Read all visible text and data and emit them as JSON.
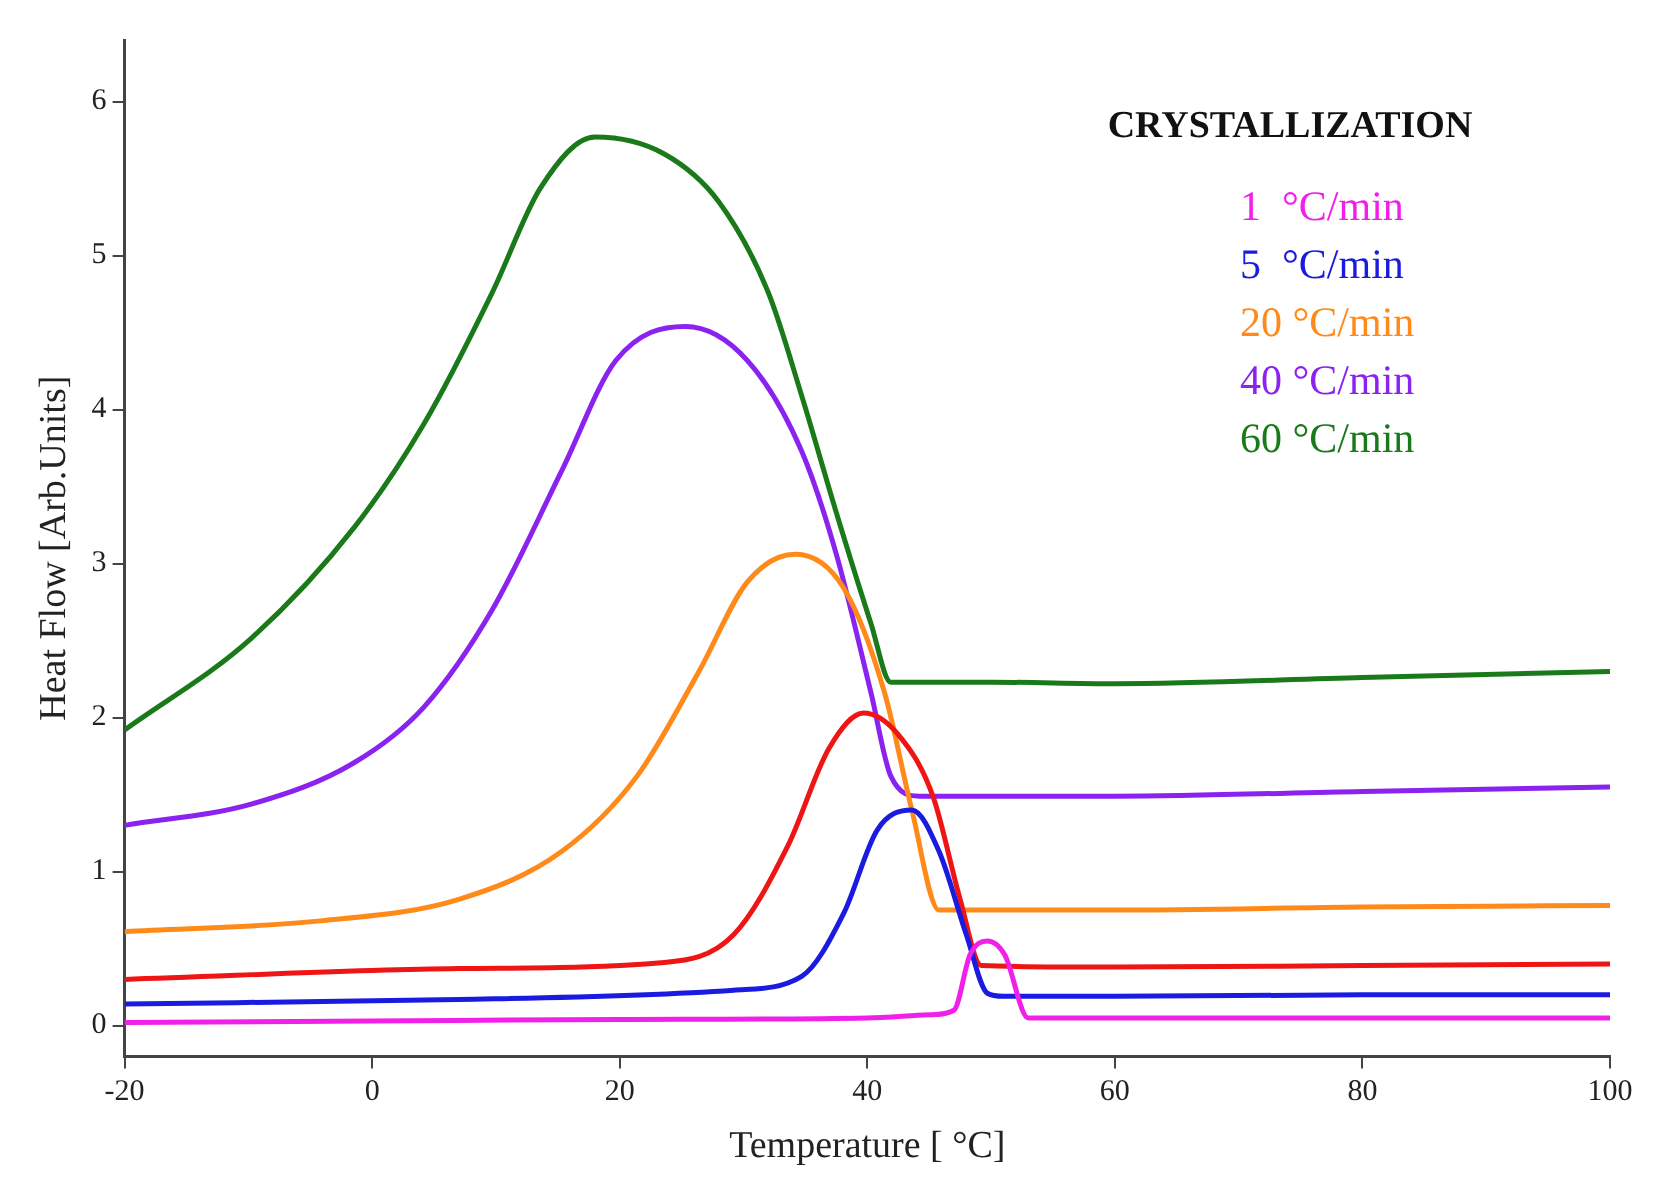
{
  "chart_data": {
    "type": "line",
    "title": "CRYSTALLIZATION",
    "xlabel": "Temperature [ °C]",
    "ylabel": "Heat Flow [Arb.Units]",
    "xlim": [
      -20,
      100
    ],
    "xticks": [
      -20,
      0,
      20,
      40,
      60,
      80,
      100
    ],
    "ylim": [
      -0.2,
      6.4
    ],
    "yticks": [
      0,
      1,
      2,
      3,
      4,
      5,
      6
    ],
    "grid": false,
    "legend": "top right",
    "marker": "none",
    "line_style": "solid",
    "series": [
      {
        "name": "1  °C/min",
        "color": "#f020e8",
        "x": [
          -20,
          0,
          20,
          40,
          45,
          47,
          48.3,
          49.7,
          51.1,
          53,
          60,
          80,
          100
        ],
        "values": [
          0.02,
          0.03,
          0.04,
          0.05,
          0.07,
          0.1,
          0.46,
          0.55,
          0.46,
          0.05,
          0.05,
          0.05,
          0.05
        ]
      },
      {
        "name": "5  °C/min",
        "color": "#1a1ae0",
        "x": [
          -20,
          7,
          29.2,
          34.7,
          38.1,
          40.8,
          43.6,
          45.8,
          48,
          49.7,
          51,
          60,
          80,
          100
        ],
        "values": [
          0.14,
          0.17,
          0.23,
          0.32,
          0.73,
          1.27,
          1.4,
          1.13,
          0.59,
          0.21,
          0.19,
          0.19,
          0.2,
          0.2
        ]
      },
      {
        "color": "#ee1515",
        "x": [
          -20,
          7,
          23.6,
          29.2,
          33.6,
          36.9,
          39.7,
          42.5,
          45.3,
          47.5,
          49.2,
          60,
          80,
          100
        ],
        "values": [
          0.3,
          0.37,
          0.41,
          0.59,
          1.17,
          1.8,
          2.03,
          1.89,
          1.49,
          0.82,
          0.39,
          0.38,
          0.39,
          0.4
        ]
      },
      {
        "name": "20 °C/min",
        "color": "#ff8a1a",
        "x": [
          -20,
          -4.2,
          7,
          15.3,
          21.4,
          26.4,
          30.3,
          34.2,
          38.1,
          41.4,
          43.6,
          45.8,
          60,
          80,
          100
        ],
        "values": [
          0.61,
          0.68,
          0.82,
          1.13,
          1.62,
          2.3,
          2.88,
          3.06,
          2.84,
          2.16,
          1.4,
          0.75,
          0.75,
          0.77,
          0.78
        ]
      },
      {
        "name": "40 °C/min",
        "color": "#8a22f0",
        "x": [
          -20,
          -9.7,
          -1.4,
          4.2,
          9.7,
          15.3,
          19.7,
          25.3,
          30.3,
          34.7,
          37.5,
          40.3,
          41.9,
          44.2,
          60,
          80,
          100
        ],
        "values": [
          1.3,
          1.44,
          1.71,
          2.07,
          2.7,
          3.6,
          4.32,
          4.54,
          4.32,
          3.73,
          3.06,
          2.16,
          1.62,
          1.49,
          1.49,
          1.52,
          1.55
        ]
      },
      {
        "name": "60 °C/min",
        "color": "#1a7a1a",
        "x": [
          -20,
          -9.7,
          -1.4,
          4.2,
          9.7,
          13.6,
          18,
          23.6,
          28,
          32,
          34.7,
          37.5,
          40.3,
          41.9,
          50,
          60,
          80,
          100
        ],
        "values": [
          1.92,
          2.52,
          3.24,
          3.91,
          4.76,
          5.44,
          5.77,
          5.66,
          5.35,
          4.76,
          4.09,
          3.33,
          2.61,
          2.23,
          2.23,
          2.22,
          2.26,
          2.3
        ]
      }
    ]
  }
}
